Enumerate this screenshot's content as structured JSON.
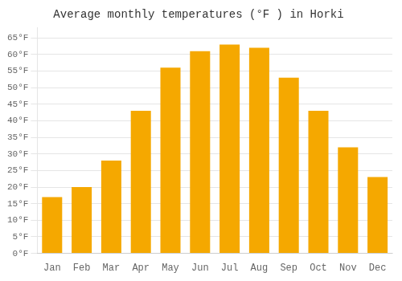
{
  "chart_data": {
    "type": "bar",
    "title": "Average monthly temperatures (°F ) in Horki",
    "categories": [
      "Jan",
      "Feb",
      "Mar",
      "Apr",
      "May",
      "Jun",
      "Jul",
      "Aug",
      "Sep",
      "Oct",
      "Nov",
      "Dec"
    ],
    "values": [
      17,
      20,
      28,
      43,
      56,
      61,
      63,
      62,
      53,
      43,
      32,
      23
    ],
    "color": "#F5A800",
    "ylim": [
      0,
      68
    ],
    "yticks": [
      {
        "value": 0,
        "label": "0°F"
      },
      {
        "value": 5,
        "label": "5°F"
      },
      {
        "value": 10,
        "label": "10°F"
      },
      {
        "value": 15,
        "label": "15°F"
      },
      {
        "value": 20,
        "label": "20°F"
      },
      {
        "value": 25,
        "label": "25°F"
      },
      {
        "value": 30,
        "label": "30°F"
      },
      {
        "value": 35,
        "label": "35°F"
      },
      {
        "value": 40,
        "label": "40°F"
      },
      {
        "value": 45,
        "label": "45°F"
      },
      {
        "value": 50,
        "label": "50°F"
      },
      {
        "value": 55,
        "label": "55°F"
      },
      {
        "value": 60,
        "label": "60°F"
      },
      {
        "value": 65,
        "label": "65°F"
      }
    ],
    "grid": true
  }
}
